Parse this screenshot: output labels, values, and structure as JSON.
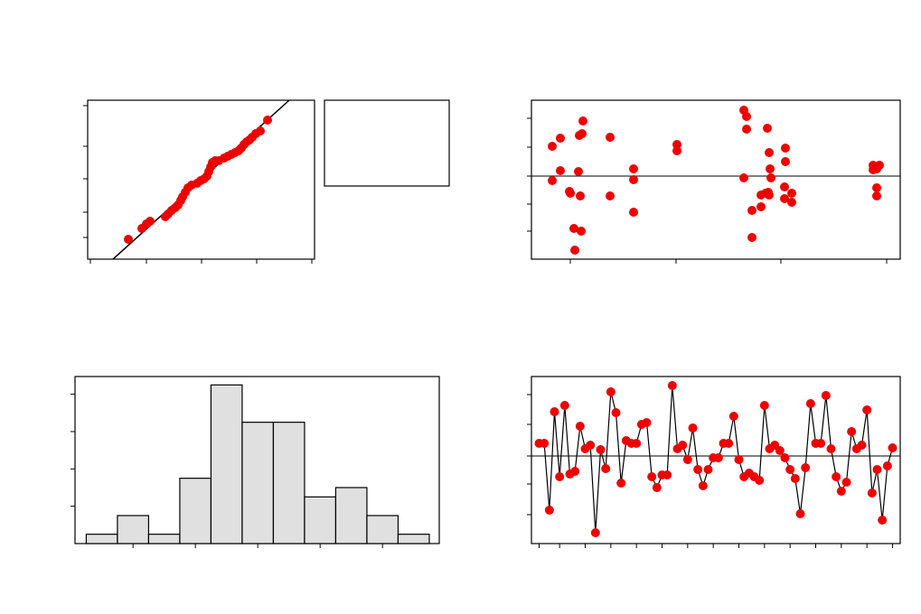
{
  "chart_data": [
    {
      "type": "probability",
      "color": "#ee0000",
      "x": [
        45,
        60,
        65,
        69,
        86,
        89,
        93,
        97,
        100,
        103,
        105,
        108,
        111,
        115,
        121,
        125,
        129,
        132,
        134,
        136,
        138,
        141,
        145,
        151,
        155,
        159,
        163,
        167,
        170,
        173,
        176,
        179,
        182,
        186,
        191,
        199
      ],
      "values": [
        22,
        34,
        39,
        42,
        47,
        50,
        54,
        57,
        60,
        65,
        69,
        74,
        79,
        82,
        84,
        87,
        89,
        92,
        97,
        102,
        107,
        109,
        109,
        112,
        114,
        116,
        118,
        120,
        123,
        127,
        130,
        132,
        135,
        139,
        142,
        154
      ],
      "fit_line": {
        "x": [
          28,
          223
        ],
        "y": [
          0,
          176
        ]
      },
      "xlim": [
        0,
        251
      ],
      "ylim": [
        0,
        176
      ],
      "xticks": [
        3,
        65,
        126,
        187,
        248
      ],
      "yticks": [
        24,
        52,
        89,
        125,
        170
      ]
    },
    {
      "type": "scatter",
      "color": "#ee0000",
      "hline": 0,
      "x": [
        23,
        23,
        32,
        32,
        42,
        43,
        47,
        48,
        52,
        53,
        54,
        55,
        56,
        57,
        87,
        87,
        113,
        113,
        113,
        161,
        161,
        235,
        238,
        238,
        235,
        244,
        244,
        254,
        259,
        261,
        263,
        263,
        264,
        265,
        281,
        281,
        280,
        280,
        288,
        288,
        378,
        378,
        382,
        385,
        382,
        382,
        262,
        254
      ],
      "values": [
        33,
        -5,
        42,
        6,
        -17,
        -19,
        -58,
        -82,
        5,
        45,
        -22,
        -61,
        47,
        61,
        43,
        -22,
        8,
        -4,
        -40,
        35,
        28,
        73,
        66,
        52,
        -2,
        -38,
        -68,
        -34,
        -19,
        53,
        -21,
        26,
        8,
        -2,
        31,
        16,
        -12,
        -25,
        -19,
        -29,
        12,
        7,
        8,
        12,
        -13,
        -22,
        -18,
        -21
      ],
      "xlim": [
        0,
        408
      ],
      "ylim": [
        -92,
        84
      ],
      "xticks": [
        43,
        160,
        276,
        393
      ],
      "yticks": [
        -61,
        -31,
        0,
        32,
        64
      ]
    },
    {
      "type": "histogram",
      "color": "#e0e0e0",
      "bins": [
        -2.75,
        -2.25,
        -1.75,
        -1.25,
        -0.75,
        -0.25,
        0.25,
        0.75,
        1.25,
        1.75,
        2.25,
        2.75
      ],
      "values": [
        1,
        3,
        1,
        7,
        17,
        13,
        13,
        5,
        6,
        3,
        1
      ],
      "xlim": [
        -2.93,
        2.91
      ],
      "ylim": [
        0,
        17.9
      ],
      "xticks": [
        -2,
        -1,
        0,
        1,
        2
      ],
      "yticks": [
        4,
        8,
        12,
        16
      ]
    },
    {
      "type": "line",
      "color": "#ee0000",
      "hline": 0,
      "x": [
        1,
        2,
        3,
        4,
        5,
        6,
        7,
        8,
        9,
        10,
        11,
        12,
        13,
        14,
        15,
        16,
        17,
        18,
        19,
        20,
        21,
        22,
        23,
        24,
        25,
        26,
        27,
        28,
        29,
        30,
        31,
        32,
        33,
        34,
        35,
        36,
        37,
        38,
        39,
        40,
        41,
        42,
        43,
        44,
        45,
        46,
        47,
        48,
        49,
        50,
        51,
        52,
        53,
        54,
        55,
        56,
        57,
        58,
        59,
        60,
        61,
        62,
        63,
        64,
        65,
        66,
        67,
        68,
        69,
        70
      ],
      "values": [
        14,
        14,
        -60,
        49,
        -23,
        56,
        -20,
        -17,
        33,
        8,
        12,
        -85,
        7,
        -14,
        71,
        48,
        -30,
        17,
        14,
        14,
        35,
        37,
        -23,
        -35,
        -21,
        -21,
        78,
        8,
        12,
        -4,
        31,
        -15,
        -33,
        -15,
        -2,
        -2,
        14,
        14,
        44,
        -4,
        -23,
        -19,
        -23,
        -27,
        56,
        8,
        12,
        6,
        -2,
        -15,
        -25,
        -64,
        -13,
        58,
        14,
        14,
        67,
        8,
        -23,
        -39,
        -29,
        27,
        8,
        12,
        51,
        -41,
        -15,
        -71,
        -11,
        9
      ],
      "xlim": [
        -0.5,
        71.5
      ],
      "ylim": [
        -97,
        88
      ],
      "xticks": [
        1,
        5,
        10,
        15,
        20,
        25,
        30,
        35,
        40,
        45,
        50,
        55,
        60,
        65,
        70
      ],
      "yticks": [
        -65,
        -31,
        0,
        35,
        68
      ]
    }
  ]
}
